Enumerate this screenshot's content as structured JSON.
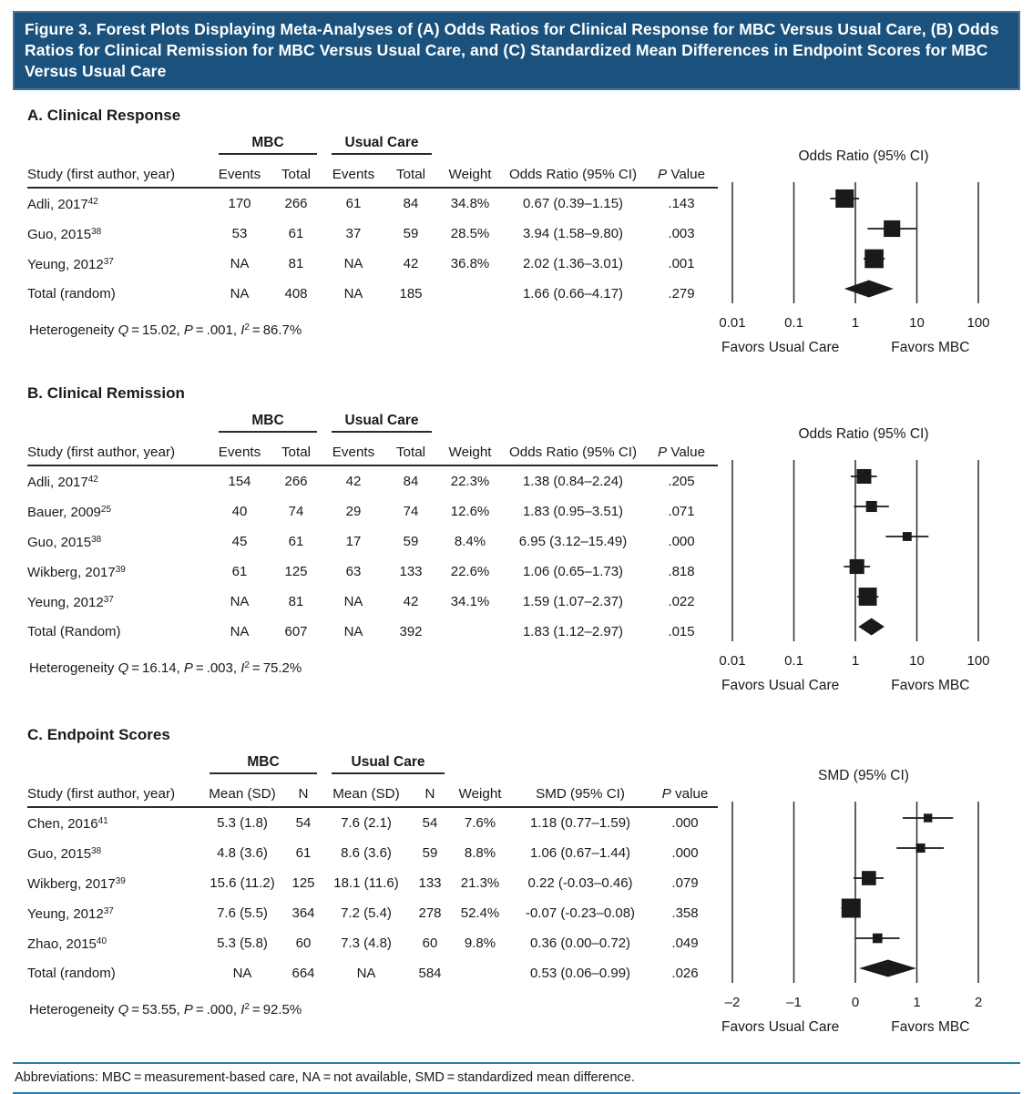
{
  "figure": {
    "title": "Figure 3. Forest Plots Displaying Meta-Analyses of (A) Odds Ratios for Clinical Response for MBC Versus Usual Care, (B) Odds Ratios for Clinical Remission for MBC Versus Usual Care, and (C) Standardized Mean Differences in Endpoint Scores for MBC Versus Usual Care",
    "abbreviations": "Abbreviations: MBC = measurement-based care, NA = not available, SMD = standardized mean difference."
  },
  "colors": {
    "header_bg": "#1A527D",
    "header_border": "#4C7396",
    "header_text": "#FFFFFF",
    "footer_rule": "#2A7CAC",
    "ink": "#1A1A1A"
  },
  "sections": [
    {
      "id": "A",
      "title": "A. Clinical Response",
      "group1": "MBC",
      "group2": "Usual Care",
      "headers": [
        "Study (first author, year)",
        "Events",
        "Total",
        "Events",
        "Total",
        "Weight",
        "Odds Ratio (95% CI)",
        "P Value"
      ],
      "rows": [
        {
          "study": "Adli, 2017",
          "sup": "42",
          "cells": [
            "170",
            "266",
            "61",
            "84",
            "34.8%",
            "0.67 (0.39–1.15)",
            ".143"
          ]
        },
        {
          "study": "Guo, 2015",
          "sup": "38",
          "cells": [
            "53",
            "61",
            "37",
            "59",
            "28.5%",
            "3.94 (1.58–9.80)",
            ".003"
          ]
        },
        {
          "study": "Yeung, 2012",
          "sup": "37",
          "cells": [
            "NA",
            "81",
            "NA",
            "42",
            "36.8%",
            "2.02 (1.36–3.01)",
            ".001"
          ]
        },
        {
          "study": "Total (random)",
          "sup": "",
          "cells": [
            "NA",
            "408",
            "NA",
            "185",
            "",
            "1.66 (0.66–4.17)",
            ".279"
          ]
        }
      ],
      "heterogeneity": {
        "label": "Heterogeneity",
        "Q": "15.02",
        "P": ".001",
        "I2": "86.7%"
      }
    },
    {
      "id": "B",
      "title": "B. Clinical Remission",
      "group1": "MBC",
      "group2": "Usual Care",
      "headers": [
        "Study (first author, year)",
        "Events",
        "Total",
        "Events",
        "Total",
        "Weight",
        "Odds Ratio (95% CI)",
        "P Value"
      ],
      "rows": [
        {
          "study": "Adli, 2017",
          "sup": "42",
          "cells": [
            "154",
            "266",
            "42",
            "84",
            "22.3%",
            "1.38 (0.84–2.24)",
            ".205"
          ]
        },
        {
          "study": "Bauer, 2009",
          "sup": "25",
          "cells": [
            "40",
            "74",
            "29",
            "74",
            "12.6%",
            "1.83 (0.95–3.51)",
            ".071"
          ]
        },
        {
          "study": "Guo, 2015",
          "sup": "38",
          "cells": [
            "45",
            "61",
            "17",
            "59",
            "8.4%",
            "6.95 (3.12–15.49)",
            ".000"
          ]
        },
        {
          "study": "Wikberg, 2017",
          "sup": "39",
          "cells": [
            "61",
            "125",
            "63",
            "133",
            "22.6%",
            "1.06 (0.65–1.73)",
            ".818"
          ]
        },
        {
          "study": "Yeung, 2012",
          "sup": "37",
          "cells": [
            "NA",
            "81",
            "NA",
            "42",
            "34.1%",
            "1.59 (1.07–2.37)",
            ".022"
          ]
        },
        {
          "study": "Total (Random)",
          "sup": "",
          "cells": [
            "NA",
            "607",
            "NA",
            "392",
            "",
            "1.83 (1.12–2.97)",
            ".015"
          ]
        }
      ],
      "heterogeneity": {
        "label": "Heterogeneity",
        "Q": "16.14",
        "P": ".003",
        "I2": "75.2%"
      }
    },
    {
      "id": "C",
      "title": "C. Endpoint Scores",
      "group1": "MBC",
      "group2": "Usual Care",
      "headers": [
        "Study (first author, year)",
        "Mean (SD)",
        "N",
        "Mean (SD)",
        "N",
        "Weight",
        "SMD (95% CI)",
        "P value"
      ],
      "rows": [
        {
          "study": "Chen, 2016",
          "sup": "41",
          "cells": [
            "5.3 (1.8)",
            "54",
            "7.6 (2.1)",
            "54",
            "7.6%",
            "1.18 (0.77–1.59)",
            ".000"
          ]
        },
        {
          "study": "Guo, 2015",
          "sup": "38",
          "cells": [
            "4.8 (3.6)",
            "61",
            "8.6 (3.6)",
            "59",
            "8.8%",
            "1.06 (0.67–1.44)",
            ".000"
          ]
        },
        {
          "study": "Wikberg, 2017",
          "sup": "39",
          "cells": [
            "15.6 (11.2)",
            "125",
            "18.1 (11.6)",
            "133",
            "21.3%",
            "0.22 (-0.03–0.46)",
            ".079"
          ]
        },
        {
          "study": "Yeung, 2012",
          "sup": "37",
          "cells": [
            "7.6 (5.5)",
            "364",
            "7.2 (5.4)",
            "278",
            "52.4%",
            "-0.07 (-0.23–0.08)",
            ".358"
          ]
        },
        {
          "study": "Zhao, 2015",
          "sup": "40",
          "cells": [
            "5.3 (5.8)",
            "60",
            "7.3 (4.8)",
            "60",
            "9.8%",
            "0.36 (0.00–0.72)",
            ".049"
          ]
        },
        {
          "study": "Total (random)",
          "sup": "",
          "cells": [
            "NA",
            "664",
            "NA",
            "584",
            "",
            "0.53 (0.06–0.99)",
            ".026"
          ]
        }
      ],
      "heterogeneity": {
        "label": "Heterogeneity",
        "Q": "53.55",
        "P": ".000",
        "I2": "92.5%"
      }
    }
  ],
  "chart_data": [
    {
      "type": "forest",
      "scale": "log10",
      "axis_title": "Odds Ratio (95% CI)",
      "ticks": [
        0.01,
        0.1,
        1,
        10,
        100
      ],
      "tick_labels": [
        "0.01",
        "0.1",
        "1",
        "10",
        "100"
      ],
      "favors_left": "Favors Usual Care",
      "favors_right": "Favors MBC",
      "studies": [
        {
          "name": "Adli, 2017",
          "est": 0.67,
          "lo": 0.39,
          "hi": 1.15,
          "weight": 34.8
        },
        {
          "name": "Guo, 2015",
          "est": 3.94,
          "lo": 1.58,
          "hi": 9.8,
          "weight": 28.5
        },
        {
          "name": "Yeung, 2012",
          "est": 2.02,
          "lo": 1.36,
          "hi": 3.01,
          "weight": 36.8
        }
      ],
      "total": {
        "name": "Total (random)",
        "est": 1.66,
        "lo": 0.66,
        "hi": 4.17
      }
    },
    {
      "type": "forest",
      "scale": "log10",
      "axis_title": "Odds Ratio (95% CI)",
      "ticks": [
        0.01,
        0.1,
        1,
        10,
        100
      ],
      "tick_labels": [
        "0.01",
        "0.1",
        "1",
        "10",
        "100"
      ],
      "favors_left": "Favors Usual Care",
      "favors_right": "Favors MBC",
      "studies": [
        {
          "name": "Adli, 2017",
          "est": 1.38,
          "lo": 0.84,
          "hi": 2.24,
          "weight": 22.3
        },
        {
          "name": "Bauer, 2009",
          "est": 1.83,
          "lo": 0.95,
          "hi": 3.51,
          "weight": 12.6
        },
        {
          "name": "Guo, 2015",
          "est": 6.95,
          "lo": 3.12,
          "hi": 15.49,
          "weight": 8.4
        },
        {
          "name": "Wikberg, 2017",
          "est": 1.06,
          "lo": 0.65,
          "hi": 1.73,
          "weight": 22.6
        },
        {
          "name": "Yeung, 2012",
          "est": 1.59,
          "lo": 1.07,
          "hi": 2.37,
          "weight": 34.1
        }
      ],
      "total": {
        "name": "Total (Random)",
        "est": 1.83,
        "lo": 1.12,
        "hi": 2.97
      }
    },
    {
      "type": "forest",
      "scale": "linear",
      "axis_title": "SMD (95% CI)",
      "ticks": [
        -2,
        -1,
        0,
        1,
        2
      ],
      "tick_labels": [
        "–2",
        "–1",
        "0",
        "1",
        "2"
      ],
      "favors_left": "Favors Usual Care",
      "favors_right": "Favors MBC",
      "studies": [
        {
          "name": "Chen, 2016",
          "est": 1.18,
          "lo": 0.77,
          "hi": 1.59,
          "weight": 7.6
        },
        {
          "name": "Guo, 2015",
          "est": 1.06,
          "lo": 0.67,
          "hi": 1.44,
          "weight": 8.8
        },
        {
          "name": "Wikberg, 2017",
          "est": 0.22,
          "lo": -0.03,
          "hi": 0.46,
          "weight": 21.3
        },
        {
          "name": "Yeung, 2012",
          "est": -0.07,
          "lo": -0.23,
          "hi": 0.08,
          "weight": 52.4
        },
        {
          "name": "Zhao, 2015",
          "est": 0.36,
          "lo": 0.0,
          "hi": 0.72,
          "weight": 9.8
        }
      ],
      "total": {
        "name": "Total (random)",
        "est": 0.53,
        "lo": 0.06,
        "hi": 0.99
      }
    }
  ]
}
